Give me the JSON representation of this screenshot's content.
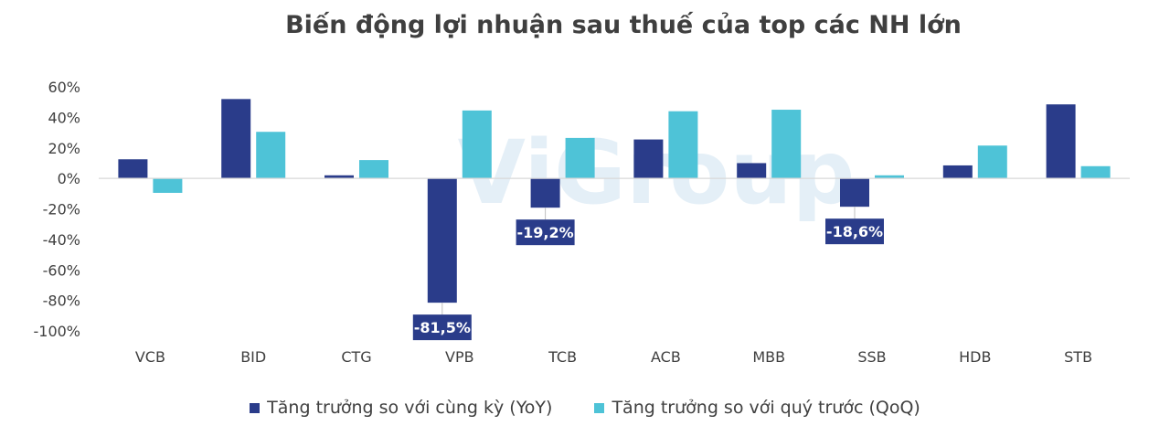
{
  "chart_data": {
    "type": "bar",
    "title": "Biến động lợi nhuận sau thuế của top các NH lớn",
    "categories": [
      "VCB",
      "BID",
      "CTG",
      "VPB",
      "TCB",
      "ACB",
      "MBB",
      "SSB",
      "HDB",
      "STB"
    ],
    "series": [
      {
        "name": "Tăng trưởng so với cùng kỳ (YoY)",
        "color": "#2a3c8a",
        "values": [
          12.5,
          52,
          2,
          -81.5,
          -19.2,
          25.5,
          10,
          -18.6,
          8.5,
          48.5
        ]
      },
      {
        "name": "Tăng trưởng so với quý trước (QoQ)",
        "color": "#4ec3d7",
        "values": [
          -9.5,
          30.5,
          12,
          44.5,
          26.5,
          44,
          45,
          2,
          21.5,
          8
        ]
      }
    ],
    "data_labels": [
      {
        "category": "VPB",
        "series": 0,
        "text": "-81,5%"
      },
      {
        "category": "TCB",
        "series": 0,
        "text": "-19,2%"
      },
      {
        "category": "SSB",
        "series": 0,
        "text": "-18,6%"
      }
    ],
    "y_ticks": [
      {
        "value": 60,
        "label": "60%"
      },
      {
        "value": 40,
        "label": "40%"
      },
      {
        "value": 20,
        "label": "20%"
      },
      {
        "value": 0,
        "label": "0%"
      },
      {
        "value": -20,
        "label": "-20%"
      },
      {
        "value": -40,
        "label": "-40%"
      },
      {
        "value": -60,
        "label": "-60%"
      },
      {
        "value": -80,
        "label": "-80%"
      },
      {
        "value": -100,
        "label": "-100%"
      }
    ],
    "ylim": [
      -100,
      60
    ],
    "grid": false,
    "legend_position": "bottom"
  },
  "watermark": "ViGroup"
}
